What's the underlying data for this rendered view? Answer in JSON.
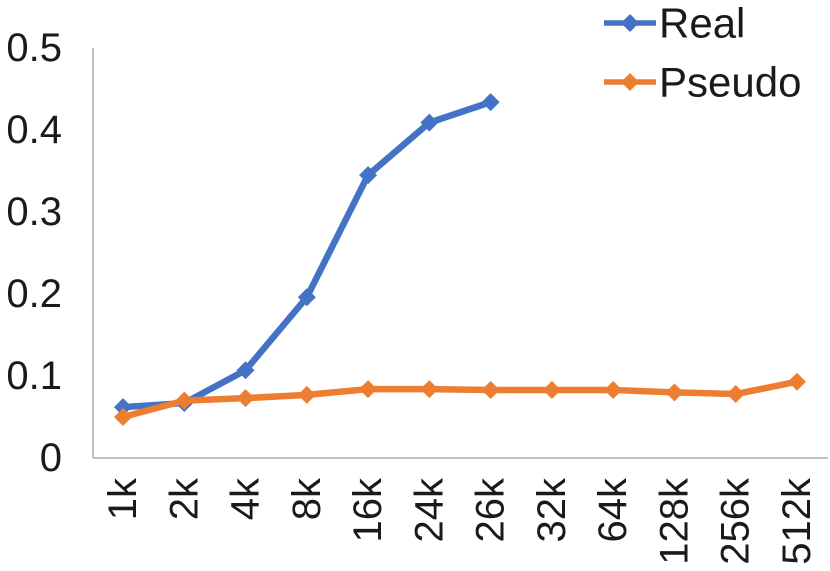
{
  "chart_data": {
    "type": "line",
    "title": "",
    "xlabel": "",
    "ylabel": "",
    "categories": [
      "1k",
      "2k",
      "4k",
      "8k",
      "16k",
      "24k",
      "26k",
      "32k",
      "64k",
      "128k",
      "256k",
      "512k"
    ],
    "series": [
      {
        "name": "Real",
        "color": "#4472C4",
        "values": [
          0.062,
          0.067,
          0.107,
          0.196,
          0.345,
          0.409,
          0.434,
          null,
          null,
          null,
          null,
          null
        ]
      },
      {
        "name": "Pseudo",
        "color": "#ED7D31",
        "values": [
          0.05,
          0.07,
          0.073,
          0.077,
          0.084,
          0.084,
          0.083,
          0.083,
          0.083,
          0.08,
          0.078,
          0.093
        ]
      }
    ],
    "y_ticks": [
      "0",
      "0.1",
      "0.2",
      "0.3",
      "0.4",
      "0.5"
    ],
    "ylim": [
      0,
      0.5
    ],
    "grid": false,
    "legend_position": "top-right",
    "marker": "diamond",
    "axis_color": "#BFBFBF",
    "text_color": "#1a1a1a"
  }
}
